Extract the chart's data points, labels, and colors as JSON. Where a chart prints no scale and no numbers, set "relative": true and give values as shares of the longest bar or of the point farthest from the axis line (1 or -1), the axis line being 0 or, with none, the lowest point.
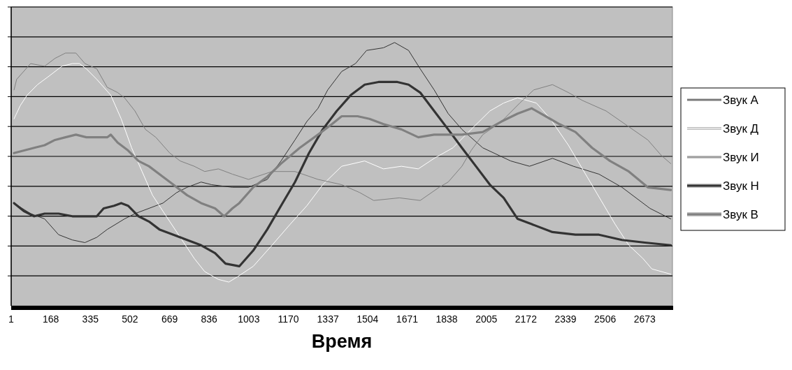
{
  "chart_data": {
    "type": "line",
    "relative": true,
    "xlabel": "Время",
    "xlim": [
      1,
      2790
    ],
    "xticks": [
      1,
      168,
      335,
      502,
      669,
      836,
      1003,
      1170,
      1337,
      1504,
      1671,
      1838,
      2005,
      2172,
      2339,
      2506,
      2673
    ],
    "grid": true,
    "legend": "right",
    "marker": "none",
    "line_style": "solid",
    "series": [
      {
        "name": "Звук А",
        "color": "#333333",
        "x": [
          13,
          83,
          142,
          201,
          259,
          312,
          362,
          406,
          479,
          523,
          582,
          641,
          699,
          743,
          802,
          846,
          934,
          1002,
          1081,
          1139,
          1198,
          1248,
          1295,
          1336,
          1395,
          1453,
          1500,
          1571,
          1618,
          1677,
          1726,
          1785,
          1844,
          1902,
          1990,
          2108,
          2187,
          2284,
          2372,
          2480,
          2577,
          2695,
          2783
        ],
        "values": [
          0.39,
          0.35,
          0.33,
          0.27,
          0.25,
          0.24,
          0.26,
          0.29,
          0.33,
          0.35,
          0.37,
          0.39,
          0.43,
          0.45,
          0.47,
          0.46,
          0.45,
          0.45,
          0.48,
          0.55,
          0.63,
          0.7,
          0.75,
          0.82,
          0.89,
          0.92,
          0.97,
          0.98,
          1,
          0.97,
          0.9,
          0.82,
          0.73,
          0.67,
          0.6,
          0.55,
          0.53,
          0.56,
          0.53,
          0.5,
          0.45,
          0.37,
          0.33
        ]
      },
      {
        "name": "Звук Д",
        "color": "#ffffff",
        "x": [
          13,
          39,
          68,
          112,
          157,
          215,
          259,
          289,
          318,
          362,
          421,
          465,
          509,
          553,
          597,
          655,
          714,
          773,
          817,
          875,
          919,
          955,
          1022,
          1101,
          1178,
          1248,
          1315,
          1395,
          1492,
          1571,
          1647,
          1718,
          1785,
          1864,
          1941,
          2020,
          2078,
          2137,
          2216,
          2275,
          2351,
          2430,
          2489,
          2548,
          2606,
          2665,
          2703,
          2783
        ],
        "values": [
          0.71,
          0.76,
          0.8,
          0.84,
          0.87,
          0.91,
          0.92,
          0.92,
          0.9,
          0.86,
          0.8,
          0.71,
          0.6,
          0.51,
          0.42,
          0.34,
          0.26,
          0.18,
          0.13,
          0.1,
          0.09,
          0.11,
          0.15,
          0.23,
          0.31,
          0.38,
          0.46,
          0.53,
          0.55,
          0.52,
          0.53,
          0.52,
          0.56,
          0.6,
          0.67,
          0.74,
          0.77,
          0.79,
          0.77,
          0.71,
          0.61,
          0.49,
          0.4,
          0.31,
          0.23,
          0.18,
          0.14,
          0.12
        ]
      },
      {
        "name": "Звук И",
        "color": "#808080",
        "x": [
          13,
          24,
          83,
          142,
          186,
          230,
          274,
          312,
          362,
          406,
          450,
          479,
          523,
          567,
          611,
          670,
          714,
          773,
          817,
          875,
          934,
          1002,
          1101,
          1198,
          1295,
          1395,
          1471,
          1530,
          1638,
          1726,
          1806,
          1844,
          1902,
          1941,
          1990,
          2069,
          2146,
          2205,
          2284,
          2351,
          2410,
          2510,
          2606,
          2686,
          2744,
          2783
        ],
        "values": [
          0.82,
          0.86,
          0.92,
          0.91,
          0.94,
          0.96,
          0.96,
          0.92,
          0.9,
          0.83,
          0.81,
          0.79,
          0.74,
          0.67,
          0.64,
          0.58,
          0.55,
          0.53,
          0.51,
          0.52,
          0.5,
          0.48,
          0.51,
          0.51,
          0.48,
          0.46,
          0.43,
          0.4,
          0.41,
          0.4,
          0.45,
          0.47,
          0.53,
          0.59,
          0.65,
          0.7,
          0.77,
          0.82,
          0.84,
          0.81,
          0.78,
          0.74,
          0.68,
          0.63,
          0.57,
          0.54
        ]
      },
      {
        "name": "Звук Н",
        "color": "#333333",
        "x": [
          13,
          54,
          98,
          142,
          201,
          259,
          318,
          362,
          391,
          435,
          465,
          494,
          538,
          582,
          626,
          685,
          743,
          802,
          861,
          905,
          963,
          1022,
          1081,
          1139,
          1198,
          1257,
          1315,
          1374,
          1433,
          1492,
          1550,
          1630,
          1677,
          1726,
          1785,
          1844,
          1902,
          1961,
          2020,
          2078,
          2137,
          2196,
          2284,
          2381,
          2480,
          2577,
          2674,
          2783
        ],
        "values": [
          0.39,
          0.36,
          0.34,
          0.35,
          0.35,
          0.34,
          0.34,
          0.34,
          0.37,
          0.38,
          0.39,
          0.38,
          0.34,
          0.32,
          0.29,
          0.27,
          0.25,
          0.23,
          0.2,
          0.16,
          0.15,
          0.21,
          0.29,
          0.38,
          0.47,
          0.58,
          0.67,
          0.74,
          0.8,
          0.84,
          0.85,
          0.85,
          0.84,
          0.81,
          0.74,
          0.67,
          0.6,
          0.53,
          0.46,
          0.41,
          0.33,
          0.31,
          0.28,
          0.27,
          0.27,
          0.25,
          0.24,
          0.23
        ]
      },
      {
        "name": "Звук В",
        "color": "#808080",
        "x": [
          13,
          98,
          142,
          186,
          230,
          274,
          318,
          362,
          406,
          421,
          450,
          494,
          538,
          582,
          641,
          685,
          743,
          802,
          861,
          899,
          934,
          963,
          1022,
          1081,
          1139,
          1218,
          1295,
          1354,
          1395,
          1462,
          1512,
          1571,
          1647,
          1718,
          1785,
          1852,
          1902,
          1990,
          2069,
          2137,
          2196,
          2255,
          2313,
          2381,
          2451,
          2527,
          2606,
          2686,
          2783
        ],
        "values": [
          0.58,
          0.6,
          0.61,
          0.63,
          0.64,
          0.65,
          0.64,
          0.64,
          0.64,
          0.65,
          0.62,
          0.59,
          0.55,
          0.53,
          0.49,
          0.46,
          0.42,
          0.39,
          0.37,
          0.34,
          0.37,
          0.39,
          0.45,
          0.49,
          0.54,
          0.6,
          0.65,
          0.69,
          0.72,
          0.72,
          0.71,
          0.69,
          0.67,
          0.64,
          0.65,
          0.65,
          0.65,
          0.66,
          0.7,
          0.73,
          0.75,
          0.72,
          0.69,
          0.66,
          0.6,
          0.55,
          0.51,
          0.45,
          0.44
        ]
      }
    ]
  }
}
